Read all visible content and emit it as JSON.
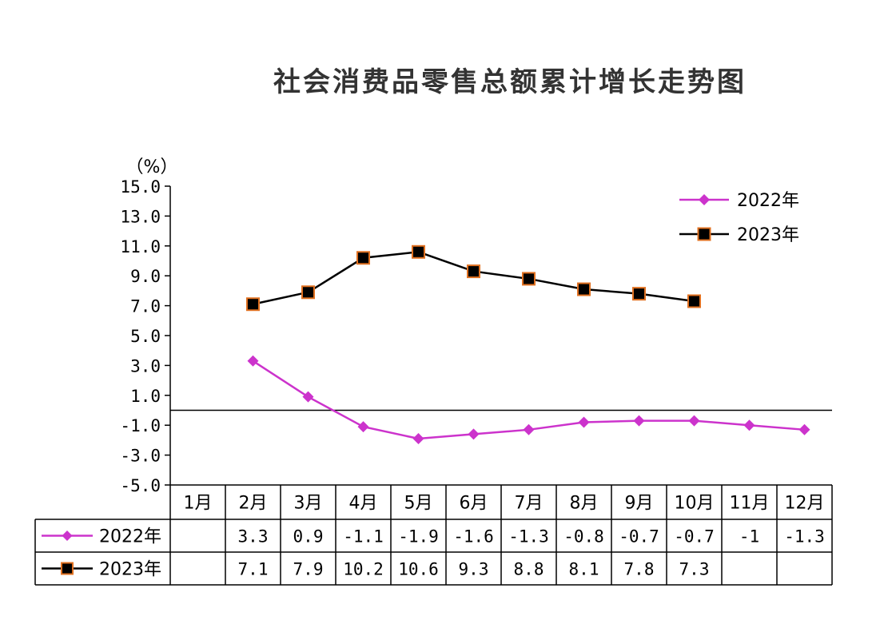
{
  "chart_data": {
    "type": "line",
    "title": "社会消费品零售总额累计增长走势图",
    "unit_label": "（%）",
    "categories": [
      "1月",
      "2月",
      "3月",
      "4月",
      "5月",
      "6月",
      "7月",
      "8月",
      "9月",
      "10月",
      "11月",
      "12月"
    ],
    "ylim": [
      -5.0,
      15.0
    ],
    "yticks": [
      "15.0",
      "13.0",
      "11.0",
      "9.0",
      "7.0",
      "5.0",
      "3.0",
      "1.0",
      "-1.0",
      "-3.0",
      "-5.0"
    ],
    "ytick_values": [
      15,
      13,
      11,
      9,
      7,
      5,
      3,
      1,
      -1,
      -3,
      -5
    ],
    "series": [
      {
        "name": "2022年",
        "color": "#CC33CC",
        "marker": "diamond",
        "values": [
          null,
          3.3,
          0.9,
          -1.1,
          -1.9,
          -1.6,
          -1.3,
          -0.8,
          -0.7,
          -0.7,
          -1,
          -1.3
        ],
        "labels": [
          "",
          "3.3",
          "0.9",
          "-1.1",
          "-1.9",
          "-1.6",
          "-1.3",
          "-0.8",
          "-0.7",
          "-0.7",
          "-1",
          "-1.3"
        ]
      },
      {
        "name": "2023年",
        "color": "#000000",
        "marker": "square",
        "marker_edge": "#E07020",
        "values": [
          null,
          7.1,
          7.9,
          10.2,
          10.6,
          9.3,
          8.8,
          8.1,
          7.8,
          7.3,
          null,
          null
        ],
        "labels": [
          "",
          "7.1",
          "7.9",
          "10.2",
          "10.6",
          "9.3",
          "8.8",
          "8.1",
          "7.8",
          "7.3",
          "",
          ""
        ]
      }
    ],
    "grid": false,
    "legend_position": "top-right",
    "data_table": true
  }
}
